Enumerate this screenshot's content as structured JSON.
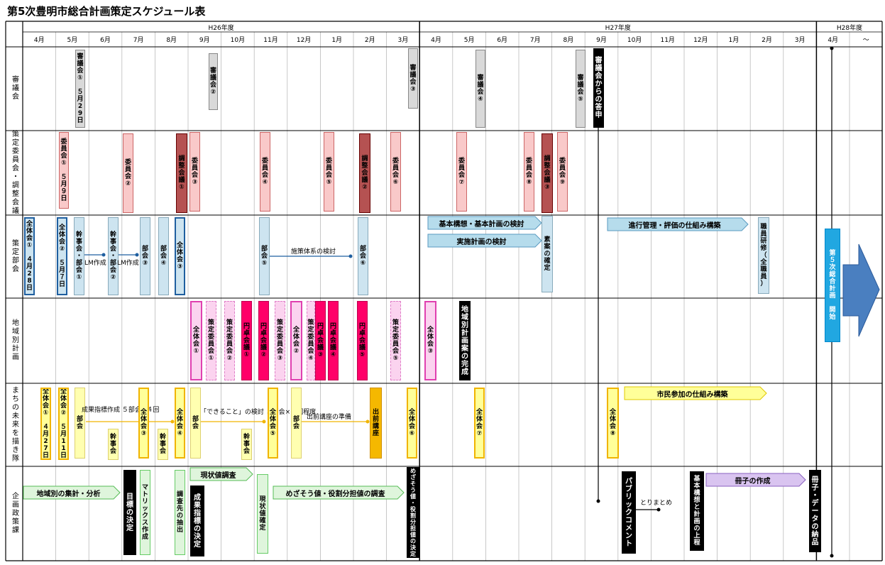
{
  "title": "第5次豊明市総合計画策定スケジュール表",
  "years": [
    "H26年度",
    "H27年度",
    "H28年度"
  ],
  "months": [
    "4月",
    "5月",
    "6月",
    "7月",
    "8月",
    "9月",
    "10月",
    "11月",
    "12月",
    "1月",
    "2月",
    "3月",
    "4月",
    "5月",
    "6月",
    "7月",
    "8月",
    "9月",
    "10月",
    "11月",
    "12月",
    "1月",
    "2月",
    "3月",
    "4月",
    "～"
  ],
  "rows": [
    "審議会",
    "策定委員会・調整会議",
    "策定部会",
    "地域別計画",
    "まちの未来を描き隊",
    "企画政策課"
  ],
  "labels": {
    "shingi1": "審議会①\n\n５月\n29\n日",
    "shingi2": "審議会②",
    "shingi3": "審議会③",
    "shingi4": "審議会④",
    "shingi5": "審議会⑤",
    "toushin": "審議会からの答申",
    "iin1": "委員会①\n\n５月\n９日",
    "iin2": "委員会②",
    "chosei1": "調整会議①",
    "iin3": "委員会③",
    "iin4": "委員会④",
    "iin5": "委員会⑤",
    "chosei2": "調整会議②",
    "iin6": "委員会⑥",
    "iin7": "委員会⑦",
    "iin8": "委員会⑧",
    "chosei3": "調整会議③",
    "iin9": "委員会⑨",
    "zentai1": "全体会①\n\n４月\n28\n日",
    "zentai2": "全体会②\n\n５月\n７日",
    "kanji1": "幹事会・部会①",
    "lm1": "LM作成",
    "kanji2": "幹事会・部会②",
    "lm2": "LM作成",
    "bukai3": "部会③",
    "bukai4": "部会④",
    "zentai3": "全体会③",
    "bukai5": "部会⑤",
    "shisaku": "施策体系の検討",
    "bukai6": "部会⑥",
    "kihon": "基本構想・基本計画の検討",
    "jisshi": "実施計画の検討",
    "soan": "素案の確定",
    "shinko": "進行管理・評価の仕組み構築",
    "shokuin": "職員研修（全職員）",
    "kaishi": "第５次総合計画　開始",
    "c_zentai1": "全体会①",
    "c_iin1": "策定委員会①",
    "c_iin2": "策定委員会②",
    "c_entaku1": "円卓会議①",
    "c_entaku2": "円卓会議②",
    "c_iin3": "策定委員会③",
    "c_zentai2": "全体会②",
    "c_iin4": "策定委員会④",
    "c_entaku3": "円卓会議③",
    "c_entaku4": "円卓会議④",
    "c_entaku5": "円卓会議⑤",
    "c_iin5": "策定委員会⑤",
    "c_zentai3": "全体会③",
    "c_kansei": "地域別計画案の完成",
    "m_zentai1": "全体会①\n\n４月\n27\n日",
    "m_zentai2": "全体会②\n\n５月\n11\n日",
    "m_bukai1": "部会",
    "m_seika": "成果指標作成\n５部会×４回",
    "m_kanji1": "幹事会",
    "m_zentai3": "全体会③",
    "m_kanji2": "幹事会",
    "m_zentai4": "全体会④",
    "m_bukai2": "部会",
    "m_dekiru": "「できること」の検討\n５部会×３回程度",
    "m_kanji3": "幹事会",
    "m_zentai5": "全体会⑤",
    "m_bukai3": "部会",
    "m_demae_jun": "出前講座の準備",
    "m_demae": "出前講座",
    "m_zentai6": "全体会⑥",
    "m_zentai7": "全体会⑦",
    "m_zentai8": "全体会⑧",
    "m_shimin": "市民参加の仕組み構築",
    "k_chiiki": "地域別の集計・分析",
    "k_mokuhyo": "目標の決定",
    "k_matrix": "マトリックス作成",
    "k_genjo": "現状値調査",
    "k_chosa": "調査先の抽出",
    "k_seika": "成果指標の決定",
    "k_genjo_kaku": "現状値確定",
    "k_mezasu": "めざそう値・役割分担値の調査",
    "k_mezasu_kettei": "めざそう値・役割分担値の決定",
    "k_public": "パブリックコメント",
    "k_torimatome": "とりまとめ",
    "k_kihon_joutei": "基本構想と計画の上程",
    "k_sasshi": "冊子の作成",
    "k_nohin": "冊子・データの納品"
  }
}
